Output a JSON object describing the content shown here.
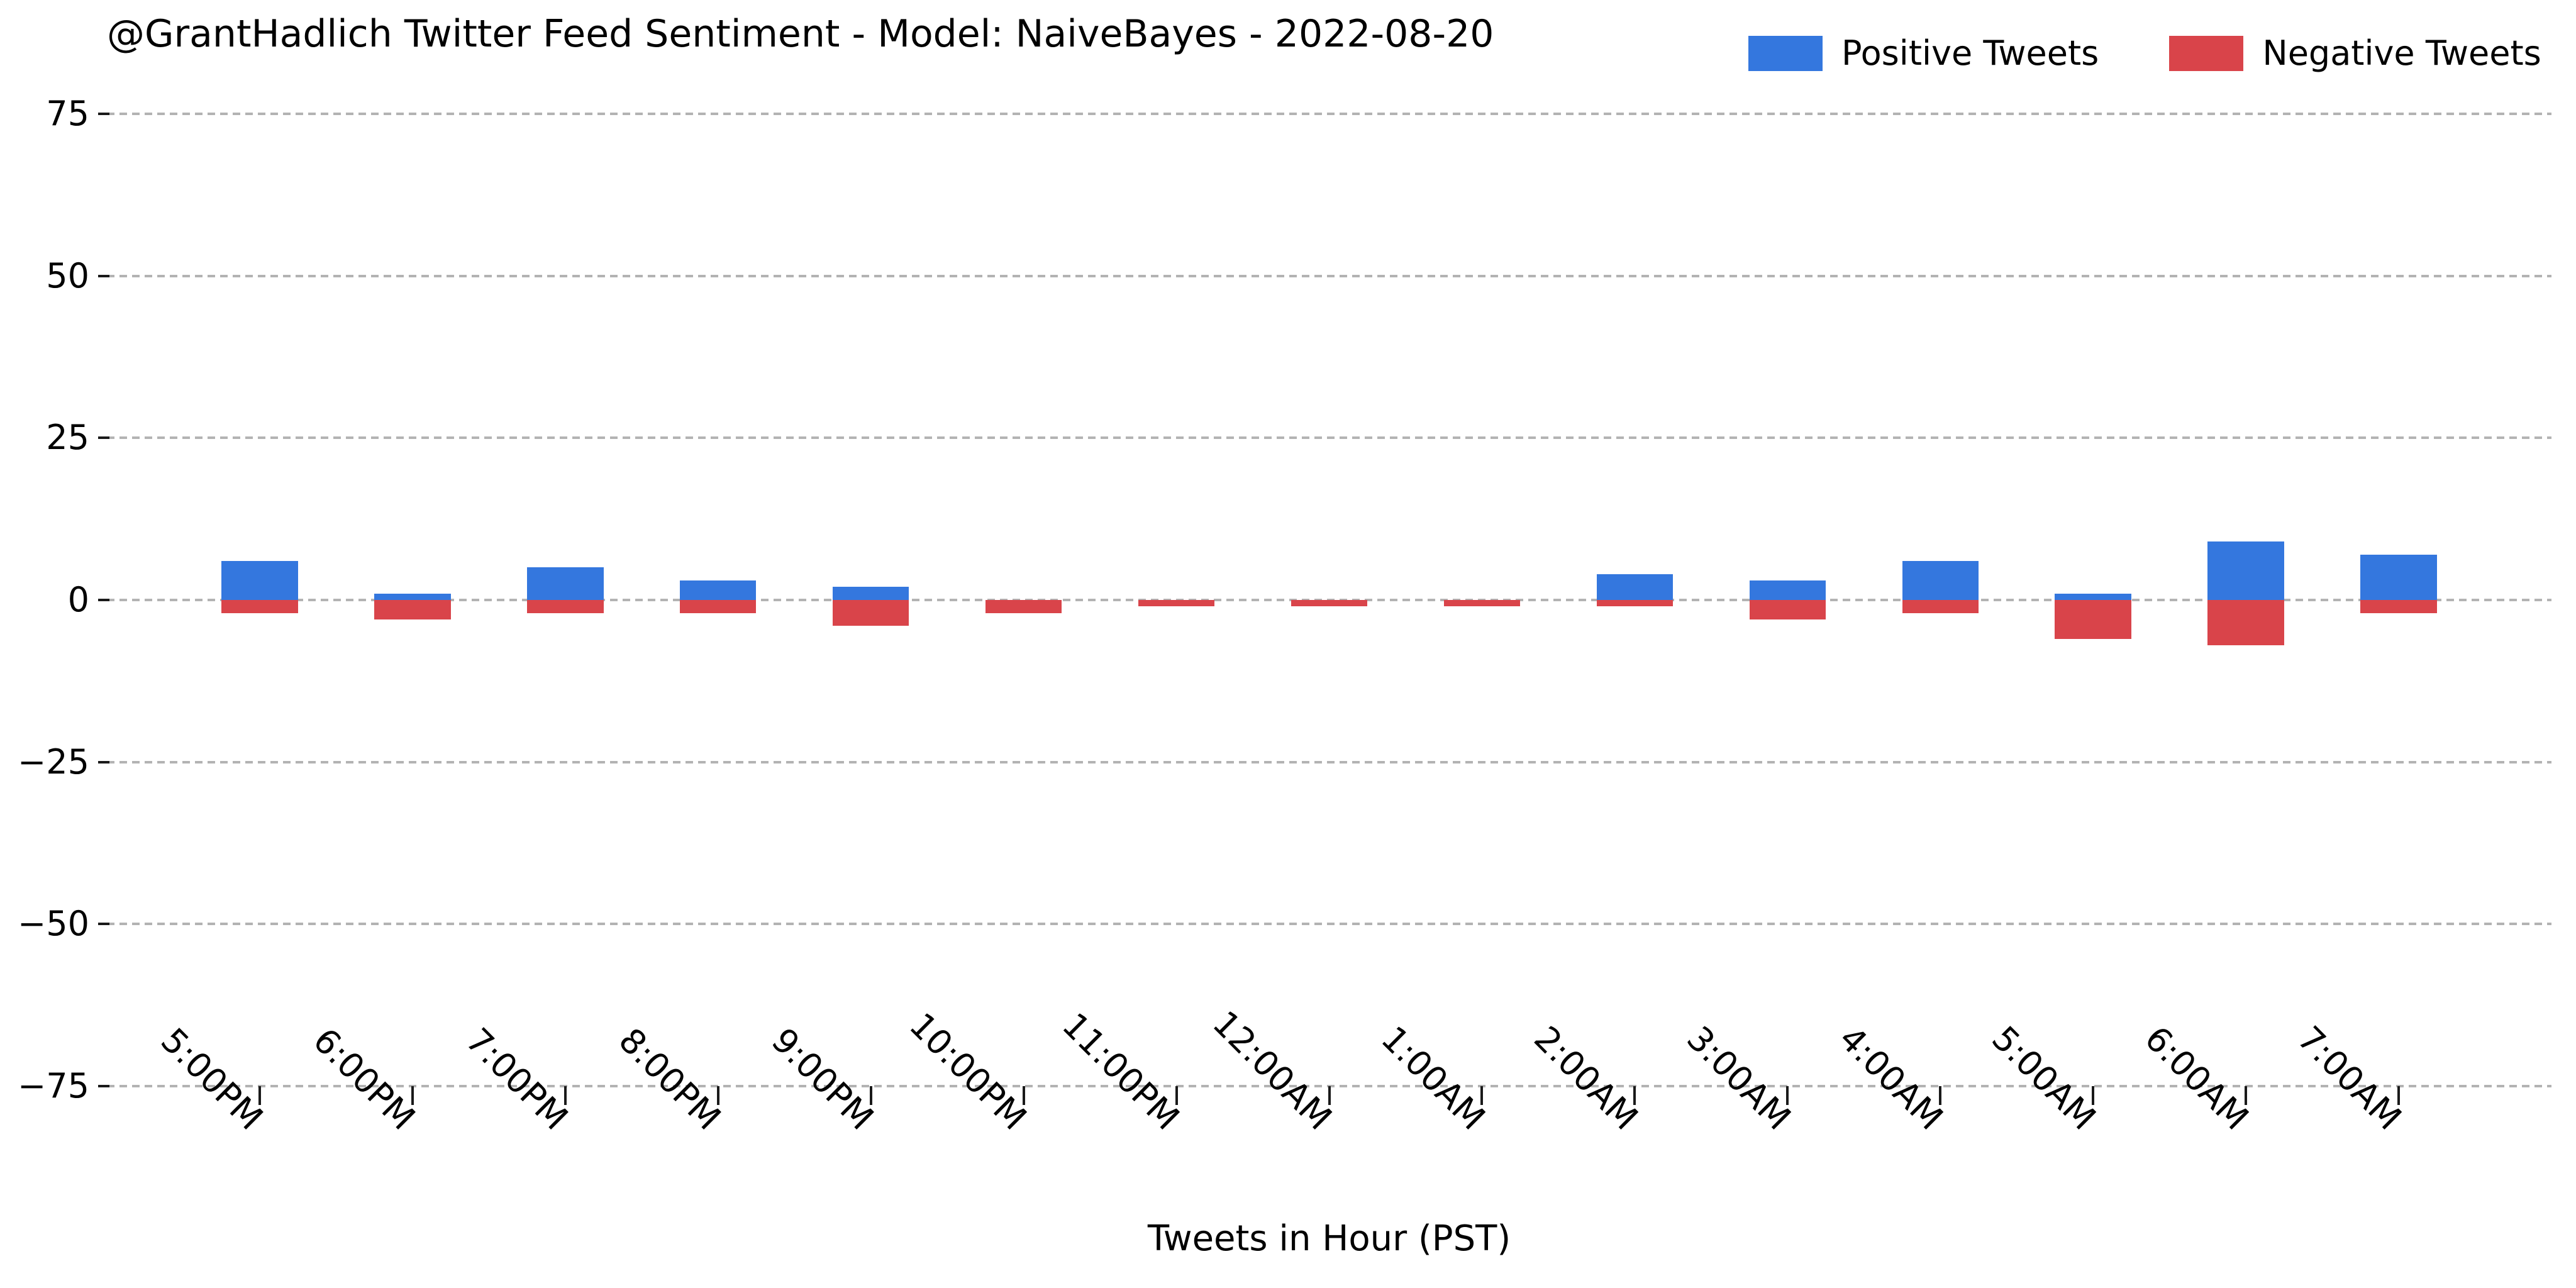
{
  "chart_data": {
    "type": "bar",
    "variant": "diverging-stacked",
    "title": "@GrantHadlich Twitter Feed Sentiment - Model: NaiveBayes - 2022-08-20",
    "xlabel": "Tweets in Hour (PST)",
    "ylabel": "",
    "categories": [
      "5:00PM",
      "6:00PM",
      "7:00PM",
      "8:00PM",
      "9:00PM",
      "10:00PM",
      "11:00PM",
      "12:00AM",
      "1:00AM",
      "2:00AM",
      "3:00AM",
      "4:00AM",
      "5:00AM",
      "6:00AM",
      "7:00AM"
    ],
    "series": [
      {
        "name": "Positive Tweets",
        "color": "#3477de",
        "values": [
          6,
          1,
          5,
          3,
          2,
          0,
          0,
          0,
          0,
          4,
          3,
          6,
          1,
          9,
          7
        ]
      },
      {
        "name": "Negative Tweets",
        "color": "#d9444a",
        "values": [
          -2,
          -3,
          -2,
          -2,
          -4,
          -2,
          -1,
          -1,
          -1,
          -1,
          -3,
          -2,
          -6,
          -7,
          -2
        ]
      }
    ],
    "ylim": [
      -75,
      75
    ],
    "xlim_slots": [
      -1,
      15
    ],
    "yticks": [
      75,
      50,
      25,
      0,
      -25,
      -50,
      -75
    ],
    "ytick_labels": [
      "75",
      "50",
      "25",
      "0",
      "−25",
      "−50",
      "−75"
    ],
    "bar_width_fraction": 0.5,
    "grid": "horizontal-dashed",
    "grid_color": "#b3b3b3",
    "legend_position": "upper-right",
    "background_color": "#ffffff",
    "text_color": "#000000"
  }
}
